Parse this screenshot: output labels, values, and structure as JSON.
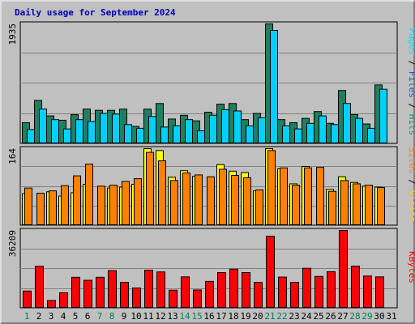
{
  "title": "Daily usage for September 2024",
  "chart_data": [
    {
      "type": "bar",
      "name": "pages-files-hits",
      "ymax_label": "1935",
      "ylim": [
        0,
        1935
      ],
      "right_label_parts": [
        "Pages",
        " / ",
        "Files",
        " / ",
        "Hits"
      ],
      "right_label_colors": [
        "#00e0ff",
        "#000000",
        "#0060d0",
        "#000000",
        "#00a070"
      ],
      "categories": [
        "1",
        "2",
        "3",
        "4",
        "5",
        "6",
        "7",
        "8",
        "9",
        "10",
        "11",
        "12",
        "13",
        "14",
        "15",
        "16",
        "17",
        "18",
        "19",
        "20",
        "21",
        "22",
        "23",
        "24",
        "25",
        "26",
        "27",
        "28",
        "29",
        "30",
        "31"
      ],
      "series": [
        {
          "name": "Hits",
          "color": "#1e8060",
          "values": [
            340,
            700,
            450,
            380,
            470,
            560,
            540,
            540,
            560,
            280,
            560,
            650,
            400,
            460,
            370,
            510,
            640,
            650,
            390,
            490,
            1935,
            390,
            340,
            410,
            520,
            330,
            860,
            470,
            320,
            950,
            0
          ]
        },
        {
          "name": "Files",
          "color": "#0080ff",
          "values": [
            0,
            0,
            0,
            0,
            0,
            0,
            0,
            0,
            0,
            0,
            0,
            0,
            0,
            0,
            0,
            0,
            0,
            0,
            0,
            0,
            0,
            0,
            0,
            0,
            0,
            0,
            0,
            0,
            0,
            0,
            0
          ]
        },
        {
          "name": "Pages",
          "color": "#00d0ff",
          "values": [
            230,
            560,
            390,
            240,
            390,
            360,
            490,
            480,
            310,
            250,
            440,
            270,
            290,
            390,
            210,
            460,
            550,
            530,
            290,
            420,
            1830,
            290,
            240,
            330,
            450,
            310,
            650,
            410,
            250,
            880,
            0
          ]
        }
      ]
    },
    {
      "type": "bar",
      "name": "visits-sites",
      "ymax_label": "164",
      "ylim": [
        0,
        164
      ],
      "right_label_parts": [
        "Sites",
        " / ",
        "Visits"
      ],
      "right_label_colors": [
        "#ff8000",
        "#000000",
        "#ffd000"
      ],
      "categories": [
        "1",
        "2",
        "3",
        "4",
        "5",
        "6",
        "7",
        "8",
        "9",
        "10",
        "11",
        "12",
        "13",
        "14",
        "15",
        "16",
        "17",
        "18",
        "19",
        "20",
        "21",
        "22",
        "23",
        "24",
        "25",
        "26",
        "27",
        "28",
        "29",
        "30",
        "31"
      ],
      "series": [
        {
          "name": "Visits",
          "color": "#ffff00",
          "values": [
            68,
            0,
            72,
            63,
            70,
            88,
            0,
            80,
            82,
            88,
            164,
            160,
            103,
            117,
            105,
            0,
            130,
            116,
            113,
            74,
            164,
            121,
            89,
            126,
            0,
            77,
            104,
            92,
            84,
            82,
            0
          ]
        },
        {
          "name": "Sites",
          "color": "#ff8000",
          "values": [
            80,
            69,
            74,
            85,
            106,
            131,
            84,
            86,
            94,
            100,
            156,
            138,
            96,
            112,
            108,
            104,
            120,
            107,
            102,
            76,
            160,
            123,
            86,
            123,
            124,
            73,
            96,
            89,
            86,
            81,
            0
          ]
        }
      ]
    },
    {
      "type": "bar",
      "name": "kbytes",
      "ymax_label": "36209",
      "ylim": [
        0,
        36209
      ],
      "right_label_parts": [
        "KBytes"
      ],
      "right_label_colors": [
        "#ff0000"
      ],
      "categories": [
        "1",
        "2",
        "3",
        "4",
        "5",
        "6",
        "7",
        "8",
        "9",
        "10",
        "11",
        "12",
        "13",
        "14",
        "15",
        "16",
        "17",
        "18",
        "19",
        "20",
        "21",
        "22",
        "23",
        "24",
        "25",
        "26",
        "27",
        "28",
        "29",
        "30",
        "31"
      ],
      "series": [
        {
          "name": "KBytes",
          "color": "#ff0000",
          "values": [
            8000,
            19500,
            3600,
            7200,
            14400,
            13000,
            14400,
            17500,
            12000,
            9400,
            17700,
            16900,
            8400,
            14600,
            8500,
            12500,
            16600,
            18200,
            16600,
            12000,
            33500,
            14500,
            12000,
            18600,
            14800,
            17000,
            36209,
            19600,
            15000,
            14600,
            0
          ]
        }
      ]
    }
  ],
  "day_labels": [
    "1",
    "2",
    "3",
    "4",
    "5",
    "6",
    "7",
    "8",
    "9",
    "10",
    "11",
    "12",
    "13",
    "14",
    "15",
    "16",
    "17",
    "18",
    "19",
    "20",
    "21",
    "22",
    "23",
    "24",
    "25",
    "26",
    "27",
    "28",
    "29",
    "30",
    "31"
  ],
  "weekend_days": [
    "1",
    "7",
    "8",
    "14",
    "15",
    "21",
    "22",
    "28",
    "29"
  ],
  "colors": {
    "weekday": "#000000",
    "weekend": "#00805a",
    "background": "#c0c0c0",
    "plot_background": "#c0c0c0",
    "title": "#0000b4"
  }
}
